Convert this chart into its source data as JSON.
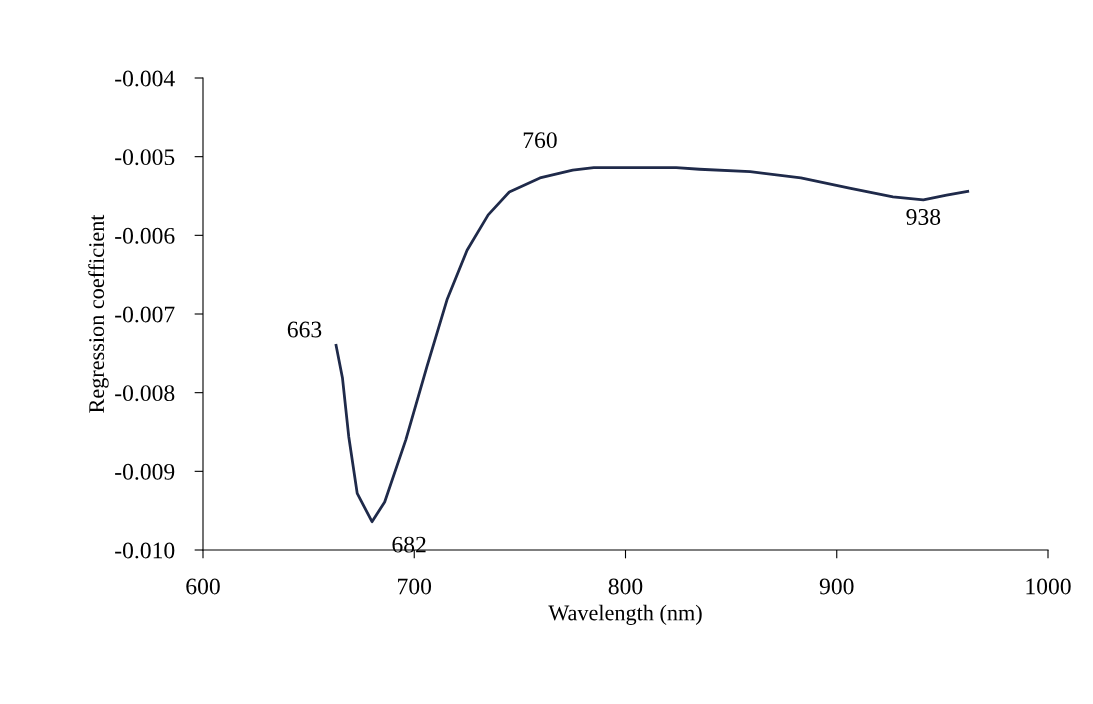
{
  "chart_data": {
    "type": "line",
    "xlabel": "Wavelength (nm)",
    "ylabel": "Regression coefficient",
    "xlim": [
      600,
      1000
    ],
    "xticks": [
      600,
      700,
      800,
      900,
      1000
    ],
    "ylim": [
      -0.01,
      -0.004
    ],
    "yticks": [
      {
        "value": -0.01,
        "label": "-0.010"
      },
      {
        "value": -0.009,
        "label": "-0.009"
      },
      {
        "value": -0.008,
        "label": "-0.008"
      },
      {
        "value": -0.007,
        "label": "-0.007"
      },
      {
        "value": -0.006,
        "label": "-0.006"
      },
      {
        "value": -0.005,
        "label": "-0.005"
      },
      {
        "value": -0.004,
        "label": "-0.004"
      }
    ],
    "grid": false,
    "legend": false,
    "marker": "none",
    "line_style": "solid",
    "series": [
      {
        "color": "#1f2a4a",
        "x": [
          663,
          666,
          669,
          673,
          680,
          686,
          696,
          706,
          715.5,
          725,
          735,
          745,
          759.5,
          775,
          785,
          824,
          835,
          859,
          883,
          906,
          926.6,
          941,
          952,
          962
        ],
        "values": [
          -0.0074,
          -0.00781,
          -0.00856,
          -0.00928,
          -0.00964,
          -0.00939,
          -0.0086,
          -0.00767,
          -0.00682,
          -0.00619,
          -0.00574,
          -0.00545,
          -0.00527,
          -0.00517,
          -0.00514,
          -0.00514,
          -0.00516,
          -0.00519,
          -0.00527,
          -0.0054,
          -0.00551,
          -0.00555,
          -0.00549,
          -0.00544
        ]
      }
    ],
    "annotations": [
      {
        "text": "663",
        "x": 663,
        "y": -0.0074
      },
      {
        "text": "682",
        "x": 680,
        "y": -0.00964
      },
      {
        "text": "760",
        "x": 759.5,
        "y": -0.00527
      },
      {
        "text": "938",
        "x": 941,
        "y": -0.00555
      }
    ]
  }
}
